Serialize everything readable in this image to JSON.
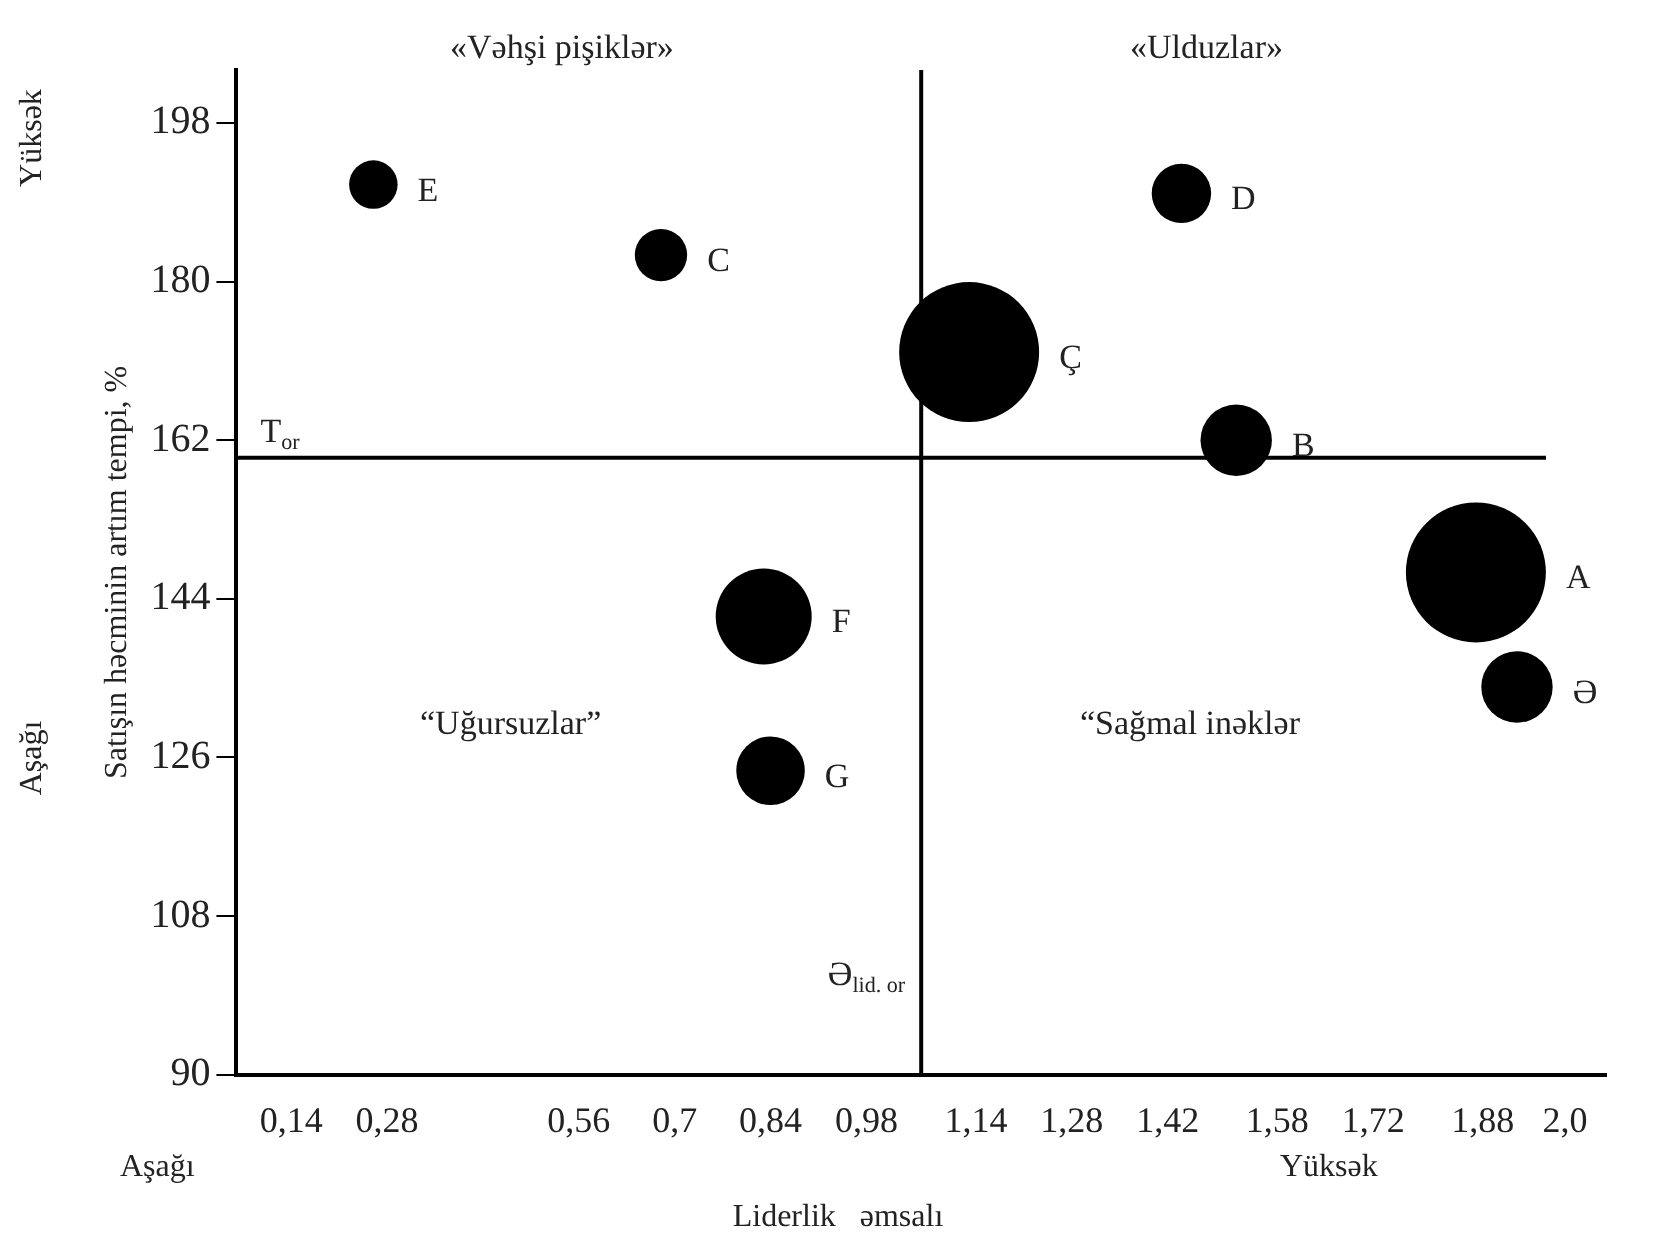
{
  "chart_data": {
    "type": "bubble",
    "xlabel": "Liderlik   əmsalı",
    "ylabel": "Satışın həcminin artım tempi, %",
    "xlim": [
      0.06,
      2.06
    ],
    "ylim": [
      90,
      204
    ],
    "xticks": [
      {
        "value": 0.14,
        "label": "0,14"
      },
      {
        "value": 0.28,
        "label": "0,28"
      },
      {
        "value": 0.56,
        "label": "0,56"
      },
      {
        "value": 0.7,
        "label": "0,7"
      },
      {
        "value": 0.84,
        "label": "0,84"
      },
      {
        "value": 0.98,
        "label": "0,98"
      },
      {
        "value": 1.14,
        "label": "1,14"
      },
      {
        "value": 1.28,
        "label": "1,28"
      },
      {
        "value": 1.42,
        "label": "1,42"
      },
      {
        "value": 1.58,
        "label": "1,58"
      },
      {
        "value": 1.72,
        "label": "1,72"
      },
      {
        "value": 1.88,
        "label": "1,88"
      },
      {
        "value": 2.0,
        "label": "2,0"
      }
    ],
    "yticks": [
      198,
      180,
      162,
      144,
      126,
      108,
      90
    ],
    "grid": false,
    "legend": false,
    "series": [
      {
        "name": "E",
        "color": "#000000",
        "x": [
          0.26
        ],
        "values": [
          191
        ],
        "sizes": [
          0.12
        ]
      },
      {
        "name": "C",
        "color": "#000000",
        "x": [
          0.68
        ],
        "values": [
          183
        ],
        "sizes": [
          0.14
        ]
      },
      {
        "name": "Ç",
        "color": "#000000",
        "x": [
          1.13
        ],
        "values": [
          172
        ],
        "sizes": [
          1
        ]
      },
      {
        "name": "D",
        "color": "#000000",
        "x": [
          1.44
        ],
        "values": [
          190
        ],
        "sizes": [
          0.18
        ]
      },
      {
        "name": "B",
        "color": "#000000",
        "x": [
          1.52
        ],
        "values": [
          162
        ],
        "sizes": [
          0.26
        ]
      },
      {
        "name": "F",
        "color": "#000000",
        "x": [
          0.83
        ],
        "values": [
          142
        ],
        "sizes": [
          0.47
        ]
      },
      {
        "name": "G",
        "color": "#000000",
        "x": [
          0.84
        ],
        "values": [
          124.5
        ],
        "sizes": [
          0.24
        ]
      },
      {
        "name": "A",
        "color": "#000000",
        "x": [
          1.87
        ],
        "values": [
          147
        ],
        "sizes": [
          1
        ]
      },
      {
        "name": "Ə",
        "color": "#000000",
        "x": [
          1.93
        ],
        "values": [
          134
        ],
        "sizes": [
          0.26
        ]
      }
    ],
    "ref_lines": [
      {
        "axis": "y",
        "value": 160,
        "label": "T$_{or}$",
        "color": "#000000"
      },
      {
        "axis": "x",
        "value": 1.06,
        "label": "Ə$_{lid. or}$",
        "color": "#000000"
      }
    ],
    "annotations": [
      "«Vəhşi pişiklər»",
      "«Ulduzlar»",
      "“Uğursuzlar”",
      "“Sağmal inəklər",
      "Yüksək",
      "Aşağı",
      "Aşağı",
      "Yüksək"
    ]
  }
}
